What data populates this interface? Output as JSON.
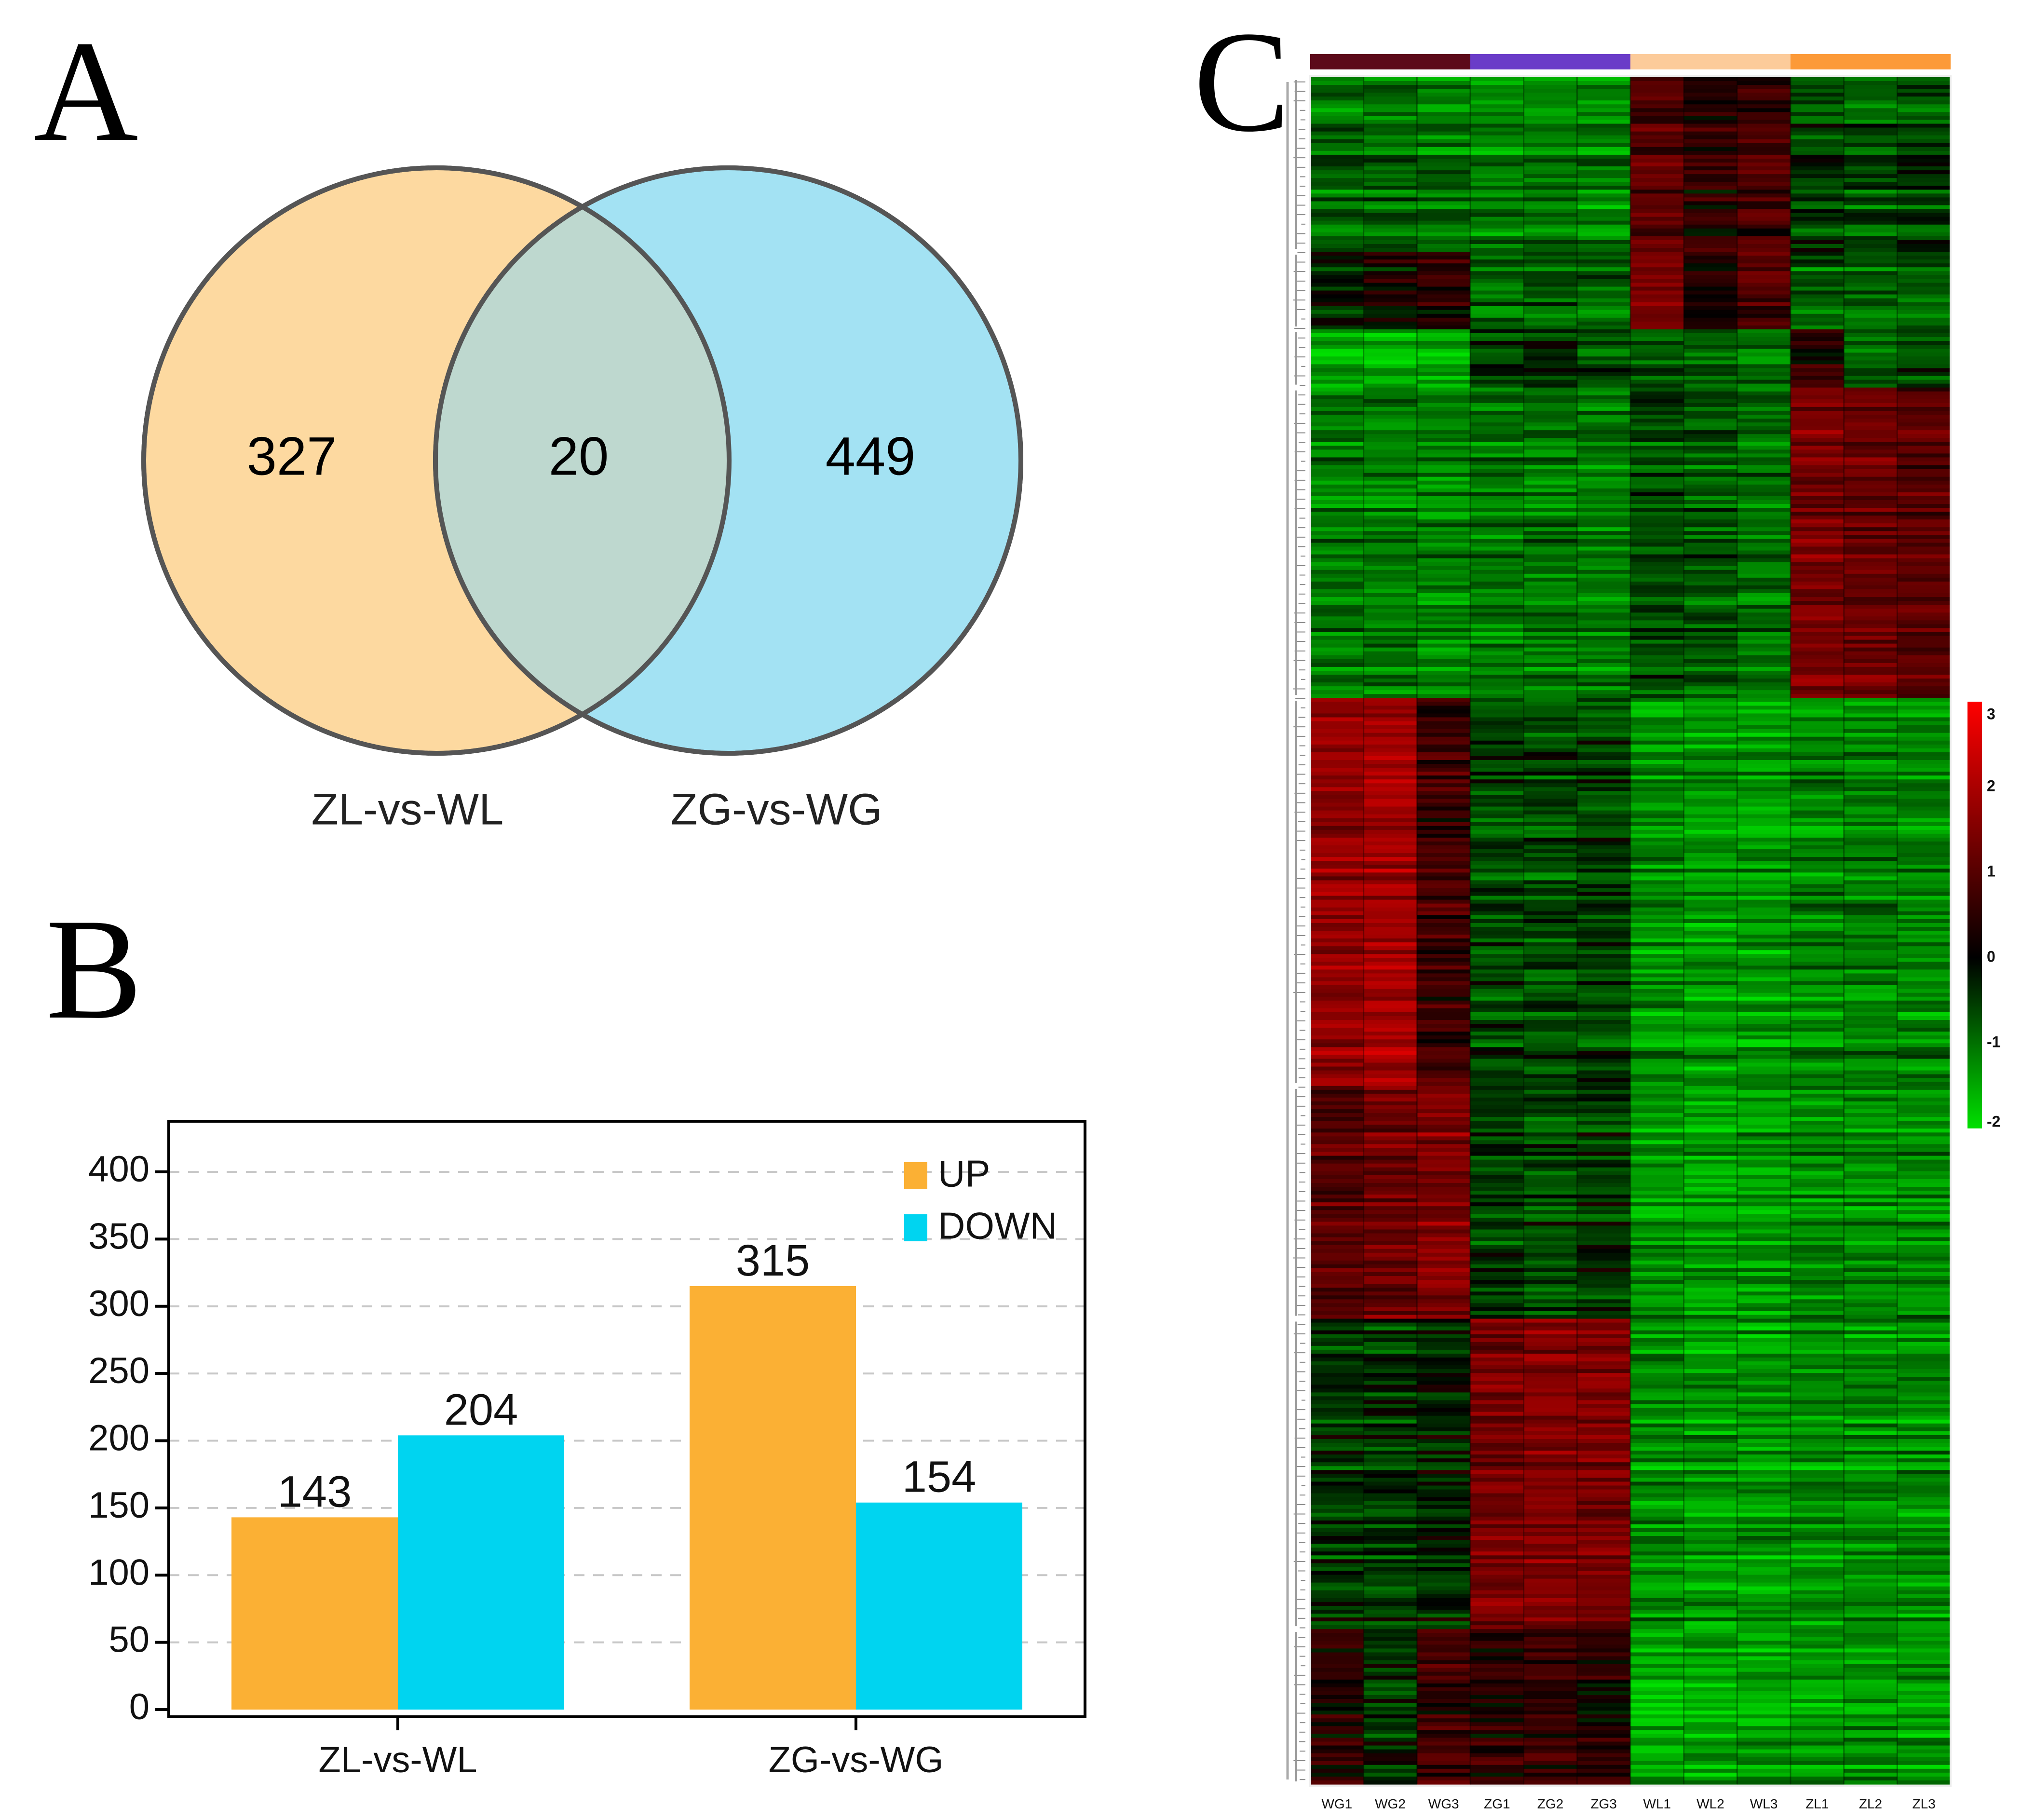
{
  "panels": {
    "a": "A",
    "b": "B",
    "c": "C"
  },
  "chart_data": [
    {
      "type": "venn",
      "sets": [
        {
          "name": "ZL-vs-WL",
          "only": 327,
          "color": "#FDD9A0"
        },
        {
          "name": "ZG-vs-WG",
          "only": 449,
          "color": "#A3E2F3"
        }
      ],
      "intersection": 20,
      "intersection_color": "#BED8CF"
    },
    {
      "type": "bar",
      "categories": [
        "ZL-vs-WL",
        "ZG-vs-WG"
      ],
      "series": [
        {
          "name": "UP",
          "values": [
            143,
            315
          ],
          "color": "#FBB034"
        },
        {
          "name": "DOWN",
          "values": [
            204,
            154
          ],
          "color": "#00D4F0"
        }
      ],
      "ylim": [
        0,
        400
      ],
      "yticks": [
        0,
        50,
        100,
        150,
        200,
        250,
        300,
        350,
        400
      ],
      "grid": true,
      "legend_position": "top-right"
    },
    {
      "type": "heatmap",
      "columns": [
        "WG1",
        "WG2",
        "WG3",
        "ZG1",
        "ZG2",
        "ZG3",
        "WL1",
        "WL2",
        "WL3",
        "ZL1",
        "ZL2",
        "ZL3"
      ],
      "groups": [
        {
          "samples": [
            "WG1",
            "WG2",
            "WG3"
          ],
          "color": "#5C0A1A"
        },
        {
          "samples": [
            "ZG1",
            "ZG2",
            "ZG3"
          ],
          "color": "#6A3CC8"
        },
        {
          "samples": [
            "WL1",
            "WL2",
            "WL3"
          ],
          "color": "#FCCB9A"
        },
        {
          "samples": [
            "ZL1",
            "ZL2",
            "ZL3"
          ],
          "color": "#FC9A38"
        }
      ],
      "colorscale": {
        "min": -2,
        "max": 3,
        "ticks": [
          3,
          2,
          1,
          0,
          -1,
          -2
        ],
        "low_color": "#00E000",
        "mid_color": "#000000",
        "high_color": "#FF0000"
      },
      "row_dendrogram": true,
      "row_clusters": [
        {
          "rows": 90,
          "values": [
            -0.9,
            -0.9,
            -1.0,
            -1.1,
            -1.1,
            -1.1,
            0.9,
            0.4,
            0.6,
            -0.5,
            -0.7,
            -0.6
          ]
        },
        {
          "rows": 40,
          "values": [
            -0.2,
            0.1,
            0.3,
            -0.9,
            -0.8,
            -0.9,
            1.2,
            0.1,
            0.7,
            -0.8,
            -0.8,
            -0.8
          ]
        },
        {
          "rows": 30,
          "values": [
            -1.5,
            -1.5,
            -1.4,
            -0.4,
            -0.2,
            -0.5,
            -0.6,
            -0.7,
            -0.9,
            0.5,
            -0.7,
            -0.5
          ]
        },
        {
          "rows": 160,
          "values": [
            -1.0,
            -1.0,
            -1.1,
            -1.0,
            -1.0,
            -1.0,
            -0.6,
            -0.7,
            -0.9,
            1.3,
            1.1,
            0.9
          ]
        },
        {
          "rows": 200,
          "values": [
            1.6,
            1.8,
            0.6,
            -0.5,
            -0.6,
            -0.5,
            -1.2,
            -1.3,
            -1.3,
            -1.1,
            -1.1,
            -1.1
          ]
        },
        {
          "rows": 120,
          "values": [
            0.9,
            1.2,
            1.4,
            -0.4,
            -0.5,
            -0.4,
            -1.2,
            -1.3,
            -1.3,
            -1.1,
            -1.1,
            -1.1
          ]
        },
        {
          "rows": 160,
          "values": [
            -0.4,
            -0.4,
            -0.2,
            1.3,
            1.4,
            1.3,
            -1.2,
            -1.3,
            -1.3,
            -1.2,
            -1.2,
            -1.2
          ]
        },
        {
          "rows": 80,
          "values": [
            0.4,
            -0.3,
            0.6,
            0.4,
            0.5,
            0.3,
            -1.5,
            -1.4,
            -1.4,
            -1.4,
            -1.3,
            -1.3
          ]
        }
      ]
    }
  ]
}
